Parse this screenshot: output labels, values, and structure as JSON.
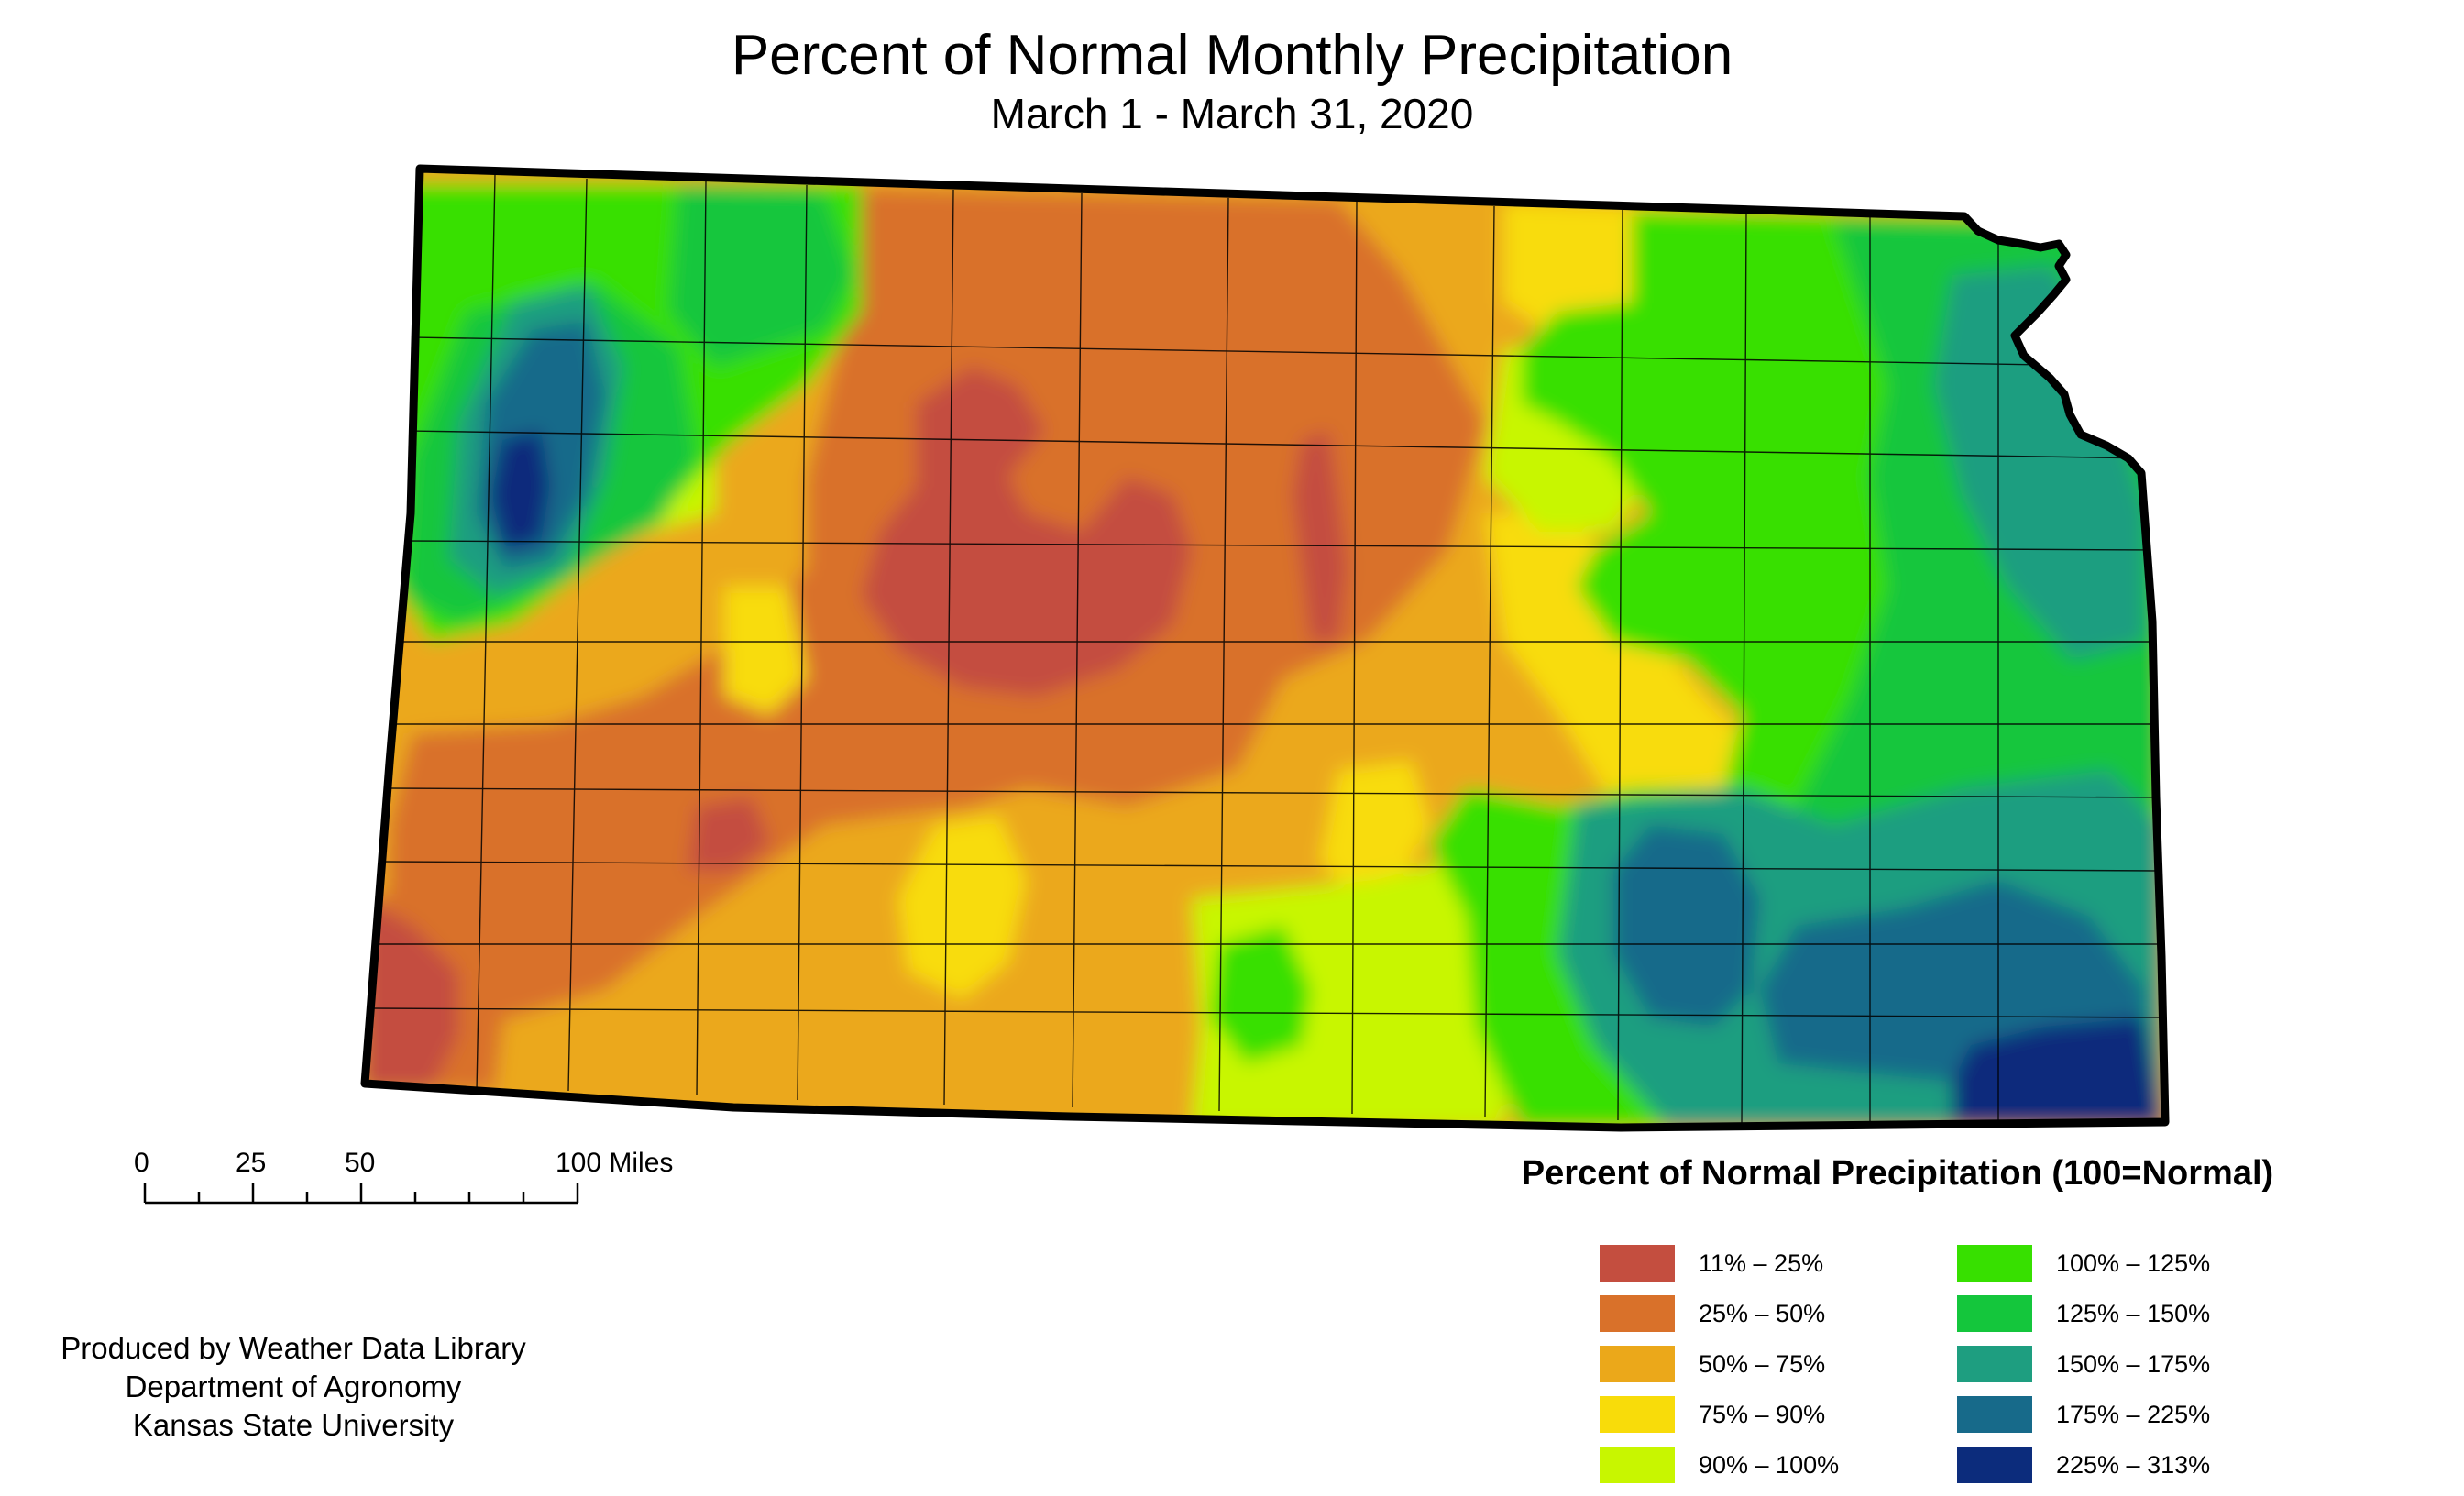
{
  "header": {
    "title": "Percent of Normal Monthly Precipitation",
    "subtitle": "March 1 - March 31, 2020"
  },
  "scale": {
    "labels": [
      "0",
      "25",
      "50",
      "100 Miles"
    ]
  },
  "credits": {
    "line1": "Produced by Weather Data Library",
    "line2": "Department of Agronomy",
    "line3": "Kansas State University"
  },
  "legend": {
    "title": "Percent of Normal Precipitation (100=Normal)",
    "items": [
      {
        "label": "11% – 25%",
        "color": "#c44e3f"
      },
      {
        "label": "25% – 50%",
        "color": "#d9712a"
      },
      {
        "label": "50% – 75%",
        "color": "#eba81a"
      },
      {
        "label": "75% – 90%",
        "color": "#f8dc0a"
      },
      {
        "label": "90% – 100%",
        "color": "#c8f600"
      },
      {
        "label": "100% – 125%",
        "color": "#37e000"
      },
      {
        "label": "125% – 150%",
        "color": "#14c63c"
      },
      {
        "label": "150% – 175%",
        "color": "#1e9e80"
      },
      {
        "label": "175% – 225%",
        "color": "#176a8a"
      },
      {
        "label": "225% – 313%",
        "color": "#0c2c7c"
      }
    ]
  }
}
